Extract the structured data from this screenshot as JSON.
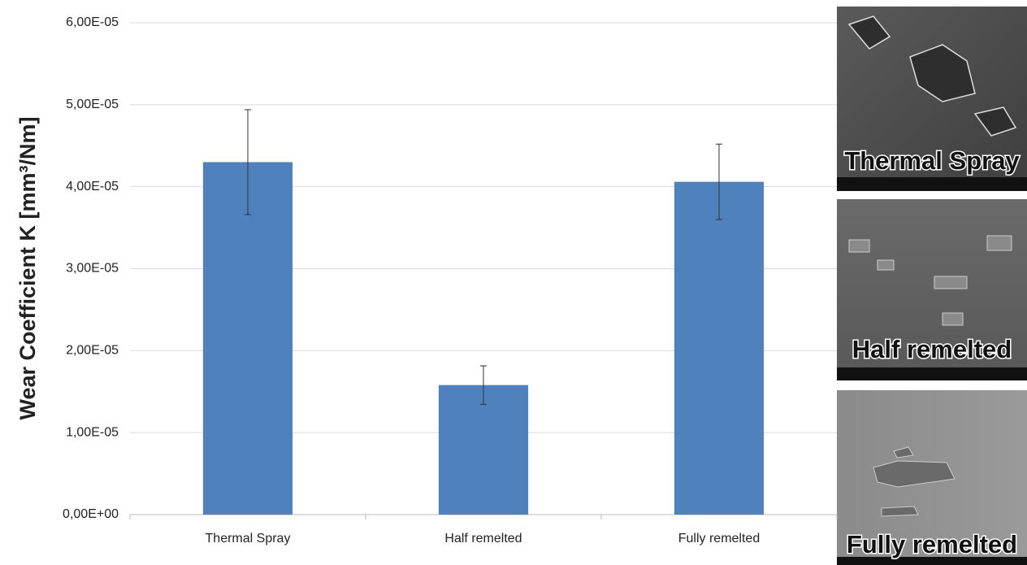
{
  "chart_data": {
    "type": "bar",
    "y_label": "Wear Coefficient K [mm³/Nm]",
    "categories": [
      "Thermal Spray",
      "Half remelted",
      "Fully remelted"
    ],
    "values": [
      4.3e-05,
      1.58e-05,
      4.06e-05
    ],
    "errors": [
      6.4e-06,
      2.35e-06,
      4.6e-06
    ],
    "color": "#4f81bd",
    "ylim": [
      0,
      6e-05
    ],
    "yticks": [
      {
        "value": 0,
        "label": "0,00E+00"
      },
      {
        "value": 1e-05,
        "label": "1,00E-05"
      },
      {
        "value": 2e-05,
        "label": "2,00E-05"
      },
      {
        "value": 3e-05,
        "label": "3,00E-05"
      },
      {
        "value": 4e-05,
        "label": "4,00E-05"
      },
      {
        "value": 5e-05,
        "label": "5,00E-05"
      },
      {
        "value": 6e-05,
        "label": "6,00E-05"
      }
    ],
    "grid": true
  },
  "image_panels": [
    {
      "label": "Thermal Spray"
    },
    {
      "label": "Half remelted"
    },
    {
      "label": "Fully remelted"
    }
  ]
}
